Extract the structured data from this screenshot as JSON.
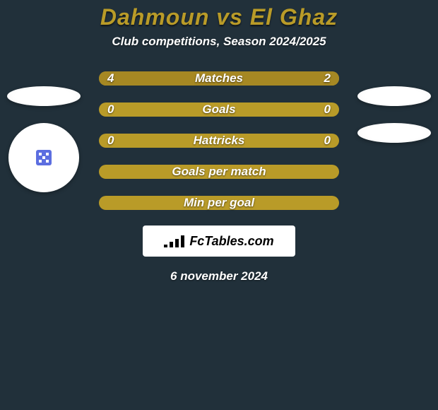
{
  "colors": {
    "background": "#21303a",
    "accent": "#b99b28",
    "fill": "#a68823"
  },
  "header": {
    "title": "Dahmoun vs El Ghaz",
    "subtitle": "Club competitions, Season 2024/2025"
  },
  "rows": [
    {
      "label": "Matches",
      "left": "4",
      "right": "2",
      "leftW": 68,
      "rightW": 33
    },
    {
      "label": "Goals",
      "left": "0",
      "right": "0",
      "leftW": 0,
      "rightW": 0
    },
    {
      "label": "Hattricks",
      "left": "0",
      "right": "0",
      "leftW": 0,
      "rightW": 0
    },
    {
      "label": "Goals per match",
      "left": "",
      "right": "",
      "leftW": 0,
      "rightW": 0
    },
    {
      "label": "Min per goal",
      "left": "",
      "right": "",
      "leftW": 0,
      "rightW": 0
    }
  ],
  "brand": {
    "text": "FcTables.com",
    "bars_heights": [
      4,
      8,
      12,
      17
    ]
  },
  "footer": {
    "date": "6 november 2024"
  }
}
